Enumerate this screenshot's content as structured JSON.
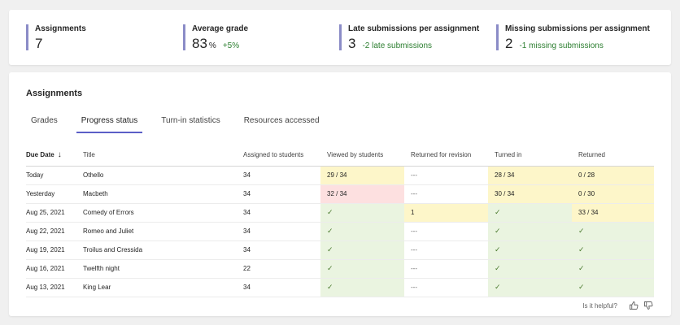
{
  "stats": [
    {
      "title": "Assignments",
      "value": "7",
      "unit": "",
      "delta": ""
    },
    {
      "title": "Average grade",
      "value": "83",
      "unit": "%",
      "delta": "+5%"
    },
    {
      "title": "Late submissions per assignment",
      "value": "3",
      "unit": "",
      "delta": "-2 late submissions"
    },
    {
      "title": "Missing submissions per assignment",
      "value": "2",
      "unit": "",
      "delta": "-1 missing submissions"
    }
  ],
  "section_title": "Assignments",
  "tabs": [
    "Grades",
    "Progress status",
    "Turn-in statistics",
    "Resources accessed"
  ],
  "active_tab": "Progress status",
  "columns": [
    "Due Date",
    "Title",
    "Assigned to students",
    "Viewed by students",
    "Returned for revision",
    "Turned in",
    "Returned"
  ],
  "sort_arrow": "↓",
  "rows": [
    {
      "due": "Today",
      "title": "Othello",
      "assigned": "34",
      "viewed": "29 / 34",
      "revision": "---",
      "turned_in": "28 / 34",
      "returned": "0 / 28"
    },
    {
      "due": "Yesterday",
      "title": "Macbeth",
      "assigned": "34",
      "viewed": "32 / 34",
      "revision": "---",
      "turned_in": "30 / 34",
      "returned": "0 / 30"
    },
    {
      "due": "Aug 25, 2021",
      "title": "Comedy of Errors",
      "assigned": "34",
      "viewed": "✓",
      "revision": "1",
      "turned_in": "✓",
      "returned": "33 / 34"
    },
    {
      "due": "Aug 22, 2021",
      "title": "Romeo and Juliet",
      "assigned": "34",
      "viewed": "✓",
      "revision": "---",
      "turned_in": "✓",
      "returned": "✓"
    },
    {
      "due": "Aug 19, 2021",
      "title": "Troilus and Cressida",
      "assigned": "34",
      "viewed": "✓",
      "revision": "---",
      "turned_in": "✓",
      "returned": "✓"
    },
    {
      "due": "Aug 16, 2021",
      "title": "Twelfth night",
      "assigned": "22",
      "viewed": "✓",
      "revision": "---",
      "turned_in": "✓",
      "returned": "✓"
    },
    {
      "due": "Aug 13, 2021",
      "title": "King Lear",
      "assigned": "34",
      "viewed": "✓",
      "revision": "---",
      "turned_in": "✓",
      "returned": "✓"
    }
  ],
  "status_colors": {
    "warning": "#fdf6c9",
    "alert": "#fde0e0",
    "ok": "#eaf4e0",
    "accent": "#5b5fc7",
    "positive": "#2a7d2e"
  },
  "feedback": {
    "label": "Is it helpful?",
    "like_icon": "thumbs-up-icon",
    "dislike_icon": "thumbs-down-icon"
  }
}
